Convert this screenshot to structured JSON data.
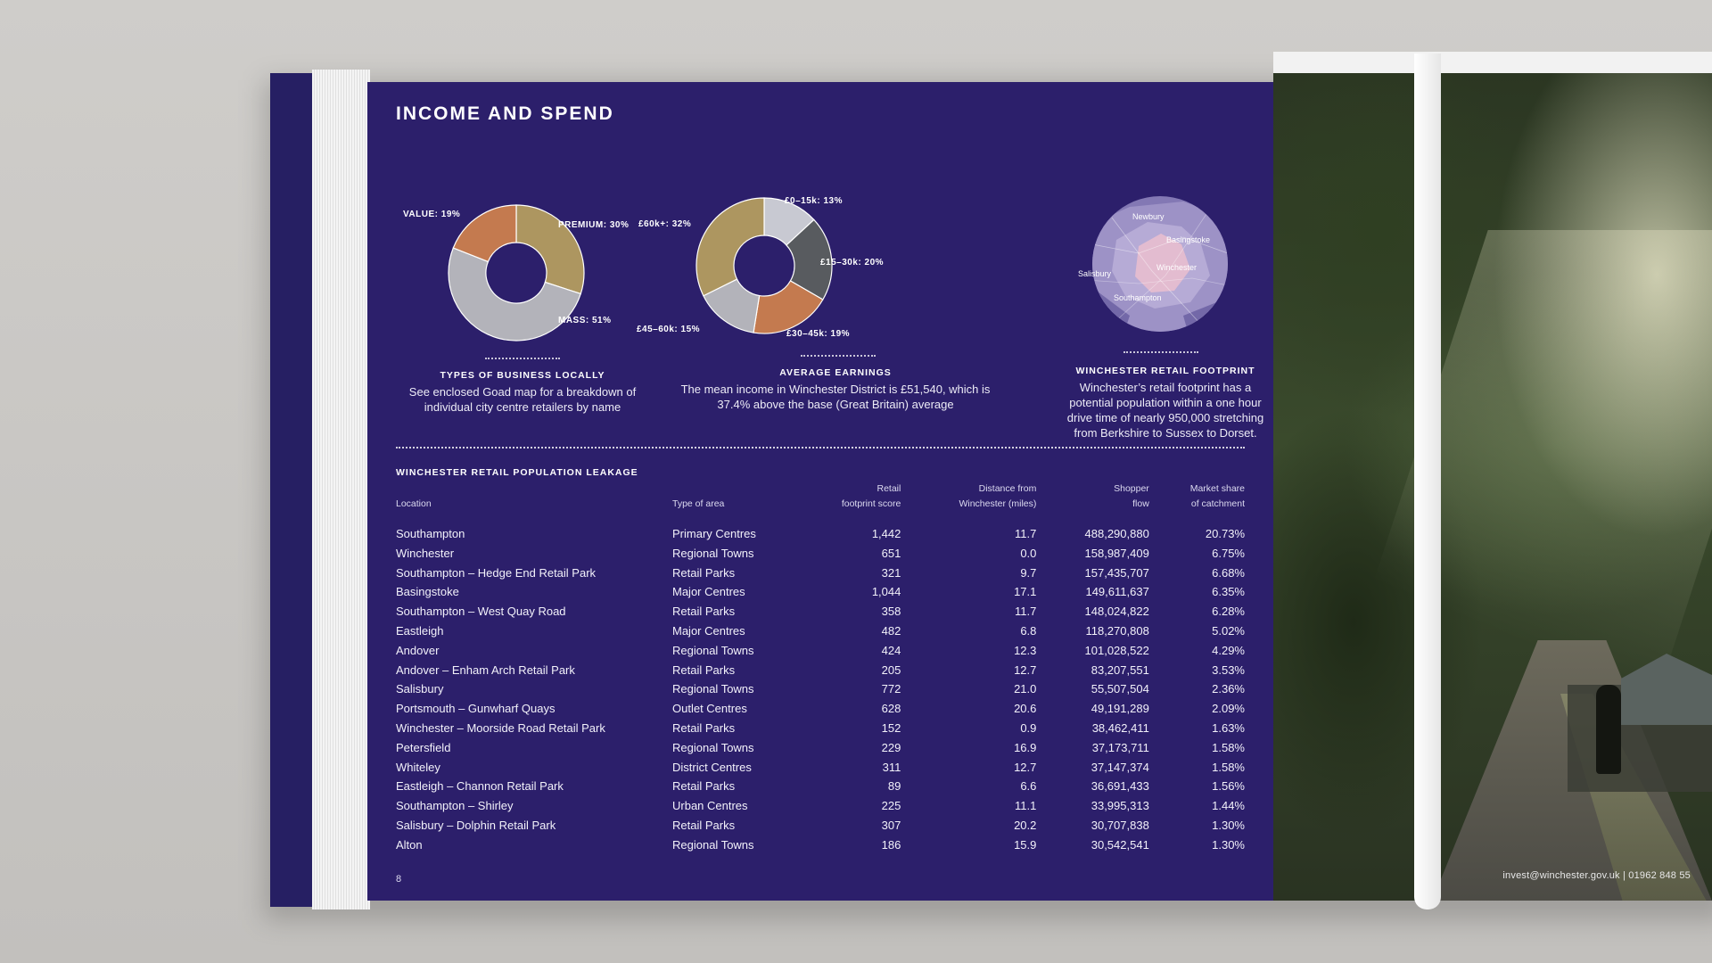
{
  "page": {
    "title": "INCOME AND SPEND",
    "page_number": "8",
    "footer_contact": "invest@winchester.gov.uk | 01962 848 55",
    "colors": {
      "page_bg": "#2c1f6b",
      "tan": "#ad9660",
      "orange": "#c47a4f",
      "grey": "#b3b3ba",
      "light_grey": "#c8c9d2",
      "dark_grey": "#585b5f"
    }
  },
  "chart_data": [
    {
      "type": "pie",
      "title": "TYPES OF BUSINESS LOCALLY",
      "categories": [
        "PREMIUM",
        "MASS",
        "VALUE"
      ],
      "values": [
        30,
        51,
        19
      ],
      "labels": [
        "PREMIUM: 30%",
        "MASS: 51%",
        "VALUE: 19%"
      ],
      "colors": [
        "#ad9660",
        "#b3b3ba",
        "#c47a4f"
      ],
      "donut": true
    },
    {
      "type": "pie",
      "title": "AVERAGE EARNINGS",
      "categories": [
        "£0–15k",
        "£15–30k",
        "£30–45k",
        "£45–60k",
        "£60k+"
      ],
      "values": [
        13,
        20,
        19,
        15,
        32
      ],
      "labels": [
        "£0–15k: 13%",
        "£15–30k: 20%",
        "£30–45k: 19%",
        "£45–60k: 15%",
        "£60k+: 32%"
      ],
      "colors": [
        "#c8c9d2",
        "#585b5f",
        "#c47a4f",
        "#b3b3ba",
        "#ad9660"
      ],
      "donut": true
    }
  ],
  "captions": {
    "business": {
      "title": "TYPES OF BUSINESS LOCALLY",
      "text": "See enclosed Goad map for a breakdown of individual city centre retailers by name"
    },
    "earnings": {
      "title": "AVERAGE EARNINGS",
      "text": "The mean income in Winchester District is £51,540, which is 37.4% above the base (Great Britain) average"
    },
    "footprint": {
      "title": "WINCHESTER RETAIL FOOTPRINT",
      "text": "Winchester’s retail footprint has a potential population within a one hour drive time of nearly 950,000 stretching from Berkshire to Sussex to Dorset."
    }
  },
  "map": {
    "labels": [
      "Newbury",
      "Basingstoke",
      "Winchester",
      "Salisbury",
      "Southampton"
    ]
  },
  "table": {
    "title": "WINCHESTER RETAIL POPULATION LEAKAGE",
    "headers": {
      "location": "Location",
      "type": "Type of area",
      "score": [
        "Retail",
        "footprint score"
      ],
      "distance": [
        "Distance from",
        "Winchester (miles)"
      ],
      "flow": [
        "Shopper",
        "flow"
      ],
      "share": [
        "Market share",
        "of catchment"
      ]
    },
    "rows": [
      [
        "Southampton",
        "Primary Centres",
        "1,442",
        "11.7",
        "488,290,880",
        "20.73%"
      ],
      [
        "Winchester",
        "Regional Towns",
        "651",
        "0.0",
        "158,987,409",
        "6.75%"
      ],
      [
        "Southampton – Hedge End Retail Park",
        "Retail Parks",
        "321",
        "9.7",
        "157,435,707",
        "6.68%"
      ],
      [
        "Basingstoke",
        "Major Centres",
        "1,044",
        "17.1",
        "149,611,637",
        "6.35%"
      ],
      [
        "Southampton – West Quay Road",
        "Retail Parks",
        "358",
        "11.7",
        "148,024,822",
        "6.28%"
      ],
      [
        "Eastleigh",
        "Major Centres",
        "482",
        "6.8",
        "118,270,808",
        "5.02%"
      ],
      [
        "Andover",
        "Regional Towns",
        "424",
        "12.3",
        "101,028,522",
        "4.29%"
      ],
      [
        "Andover – Enham Arch Retail Park",
        "Retail Parks",
        "205",
        "12.7",
        "83,207,551",
        "3.53%"
      ],
      [
        "Salisbury",
        "Regional Towns",
        "772",
        "21.0",
        "55,507,504",
        "2.36%"
      ],
      [
        "Portsmouth – Gunwharf Quays",
        "Outlet Centres",
        "628",
        "20.6",
        "49,191,289",
        "2.09%"
      ],
      [
        "Winchester – Moorside Road Retail Park",
        "Retail Parks",
        "152",
        "0.9",
        "38,462,411",
        "1.63%"
      ],
      [
        "Petersfield",
        "Regional Towns",
        "229",
        "16.9",
        "37,173,711",
        "1.58%"
      ],
      [
        "Whiteley",
        "District Centres",
        "311",
        "12.7",
        "37,147,374",
        "1.58%"
      ],
      [
        "Eastleigh – Channon Retail Park",
        "Retail Parks",
        "89",
        "6.6",
        "36,691,433",
        "1.56%"
      ],
      [
        "Southampton – Shirley",
        "Urban Centres",
        "225",
        "11.1",
        "33,995,313",
        "1.44%"
      ],
      [
        "Salisbury – Dolphin Retail Park",
        "Retail Parks",
        "307",
        "20.2",
        "30,707,838",
        "1.30%"
      ],
      [
        "Alton",
        "Regional Towns",
        "186",
        "15.9",
        "30,542,541",
        "1.30%"
      ]
    ]
  }
}
